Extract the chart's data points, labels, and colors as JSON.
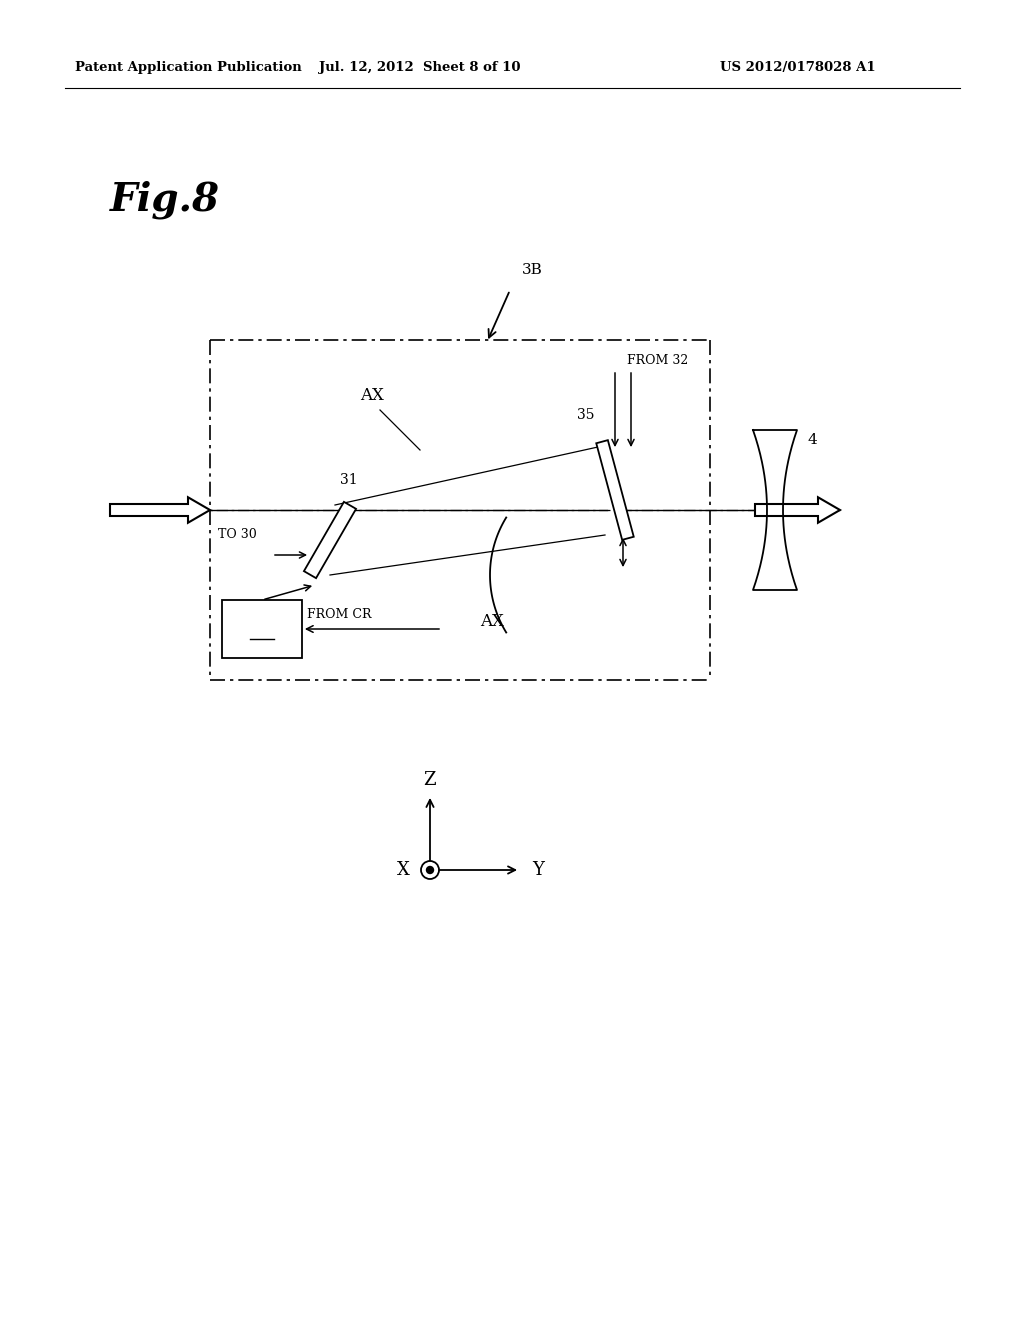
{
  "bg_color": "#ffffff",
  "header_left": "Patent Application Publication",
  "header_mid": "Jul. 12, 2012  Sheet 8 of 10",
  "header_right": "US 2012/0178028 A1",
  "fig_label": "Fig.8",
  "ax_label_upper": "AX",
  "ax_label_lower": "AX",
  "label_3B": "3B",
  "label_31": "31",
  "label_32": "32",
  "label_35": "35",
  "label_4": "4",
  "label_to30": "TO 30",
  "label_fromCR": "FROM CR",
  "label_from32": "FROM 32"
}
